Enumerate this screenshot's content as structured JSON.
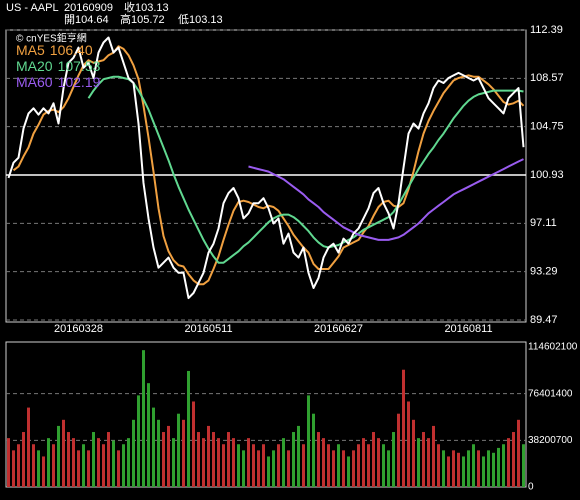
{
  "header": {
    "symbol": "US - AAPL",
    "date": "20160909",
    "close": "收103.13",
    "open": "開104.64",
    "high": "高105.72",
    "low": "低103.13",
    "watermark": "© cnYES鉅亨網"
  },
  "chart_data": [
    {
      "type": "line",
      "categories": [
        null,
        null,
        null,
        null,
        null,
        null,
        null,
        null,
        null,
        null,
        null,
        null,
        null,
        null,
        "20160328",
        null,
        null,
        null,
        null,
        null,
        null,
        null,
        null,
        null,
        null,
        null,
        null,
        null,
        null,
        null,
        null,
        null,
        null,
        null,
        null,
        null,
        null,
        null,
        null,
        null,
        "20160511",
        null,
        null,
        null,
        null,
        null,
        null,
        null,
        null,
        null,
        null,
        null,
        null,
        null,
        null,
        null,
        null,
        null,
        null,
        null,
        null,
        null,
        null,
        null,
        null,
        null,
        "20160627",
        null,
        null,
        null,
        null,
        null,
        null,
        null,
        null,
        null,
        null,
        null,
        null,
        null,
        null,
        null,
        null,
        null,
        null,
        null,
        null,
        null,
        null,
        null,
        null,
        null,
        "20160811",
        null,
        null,
        null,
        null,
        null,
        null,
        null,
        null,
        null,
        null,
        null
      ],
      "ylim": [
        89.47,
        112.39
      ],
      "yticks": [
        89.47,
        93.29,
        97.11,
        100.93,
        104.75,
        108.57,
        112.39
      ],
      "grid": true,
      "reference_line": 100.93,
      "series": [
        {
          "color": "#ffffff",
          "values": [
            100.7,
            101.9,
            102.3,
            104.6,
            105.8,
            106.2,
            105.7,
            106.2,
            105.8,
            106.6,
            105.0,
            107.8,
            109.8,
            110.2,
            111.0,
            109.4,
            109.8,
            108.6,
            110.6,
            111.4,
            111.8,
            110.6,
            111.0,
            109.8,
            108.6,
            108.2,
            105.0,
            100.3,
            97.5,
            95.2,
            93.6,
            94.0,
            94.4,
            93.6,
            93.2,
            93.2,
            91.2,
            91.6,
            92.4,
            93.2,
            94.8,
            95.5,
            96.7,
            98.7,
            99.5,
            99.9,
            99.1,
            97.5,
            97.9,
            98.7,
            98.7,
            99.1,
            98.3,
            97.1,
            97.5,
            95.5,
            96.3,
            94.8,
            94.4,
            95.2,
            93.2,
            92.0,
            92.8,
            94.4,
            95.2,
            95.5,
            94.8,
            95.9,
            95.5,
            96.3,
            96.7,
            97.5,
            98.3,
            99.5,
            99.9,
            98.7,
            97.9,
            96.7,
            98.7,
            101.5,
            104.2,
            105.0,
            104.6,
            105.8,
            106.6,
            107.8,
            108.4,
            108.2,
            108.6,
            108.8,
            109.0,
            108.8,
            108.6,
            108.4,
            108.6,
            107.8,
            107.0,
            106.6,
            106.2,
            105.8,
            107.0,
            107.4,
            107.8,
            103.13
          ]
        },
        {
          "name": "MA5",
          "last_label": "106.40",
          "color": "#f0a040",
          "values": [
            null,
            101.3,
            101.6,
            102.4,
            103.1,
            104.2,
            104.9,
            105.7,
            106.0,
            106.1,
            105.9,
            106.3,
            107.0,
            107.9,
            108.8,
            109.6,
            110.0,
            109.8,
            109.9,
            110.0,
            110.4,
            110.6,
            111.1,
            110.9,
            110.4,
            109.6,
            108.5,
            106.4,
            103.9,
            101.2,
            98.3,
            96.1,
            94.9,
            94.2,
            93.8,
            93.7,
            93.1,
            92.6,
            92.3,
            92.3,
            92.6,
            93.5,
            94.5,
            95.8,
            97.0,
            98.1,
            98.8,
            98.9,
            98.8,
            98.6,
            98.4,
            98.3,
            98.5,
            98.4,
            98.1,
            97.5,
            96.9,
            96.2,
            95.7,
            95.2,
            94.8,
            93.9,
            93.5,
            93.5,
            93.5,
            94.0,
            94.5,
            95.2,
            95.4,
            95.6,
            95.8,
            96.4,
            96.9,
            97.7,
            98.4,
            98.8,
            98.9,
            98.5,
            98.4,
            98.7,
            99.8,
            101.2,
            102.8,
            104.2,
            105.2,
            106.0,
            106.7,
            107.4,
            107.9,
            108.4,
            108.6,
            108.7,
            108.8,
            108.7,
            108.7,
            108.4,
            108.1,
            107.7,
            107.2,
            106.7,
            106.5,
            106.6,
            106.8,
            106.4
          ]
        },
        {
          "name": "MA20",
          "last_label": "107.53",
          "color": "#60d890",
          "values": [
            null,
            null,
            null,
            null,
            null,
            null,
            null,
            null,
            null,
            null,
            null,
            null,
            null,
            null,
            null,
            null,
            107.0,
            107.6,
            108.1,
            108.5,
            108.6,
            108.7,
            108.7,
            108.6,
            108.5,
            108.2,
            107.6,
            106.9,
            106.1,
            105.1,
            104.1,
            103.1,
            102.1,
            101.0,
            100.0,
            99.1,
            98.2,
            97.4,
            96.6,
            95.8,
            95.1,
            94.5,
            94.0,
            94.0,
            94.3,
            94.6,
            94.9,
            95.3,
            95.6,
            96.0,
            96.4,
            96.8,
            97.2,
            97.5,
            97.7,
            97.8,
            97.8,
            97.6,
            97.3,
            96.9,
            96.5,
            96.0,
            95.6,
            95.3,
            95.2,
            95.3,
            95.4,
            95.6,
            95.8,
            96.0,
            96.3,
            96.6,
            96.8,
            97.0,
            97.2,
            97.4,
            97.6,
            98.0,
            98.6,
            99.3,
            100.0,
            100.7,
            101.4,
            102.0,
            102.6,
            103.1,
            103.7,
            104.2,
            104.8,
            105.4,
            105.9,
            106.4,
            106.8,
            107.1,
            107.3,
            107.4,
            107.5,
            107.6,
            107.6,
            107.6,
            107.6,
            107.6,
            107.6,
            107.53
          ]
        },
        {
          "name": "MA60",
          "last_label": "102.19",
          "color": "#9a5cf0",
          "values": [
            null,
            null,
            null,
            null,
            null,
            null,
            null,
            null,
            null,
            null,
            null,
            null,
            null,
            null,
            null,
            null,
            null,
            null,
            null,
            null,
            null,
            null,
            null,
            null,
            null,
            null,
            null,
            null,
            null,
            null,
            null,
            null,
            null,
            null,
            null,
            null,
            null,
            null,
            null,
            null,
            null,
            null,
            null,
            null,
            null,
            null,
            null,
            null,
            101.6,
            101.5,
            101.4,
            101.3,
            101.2,
            101.0,
            100.8,
            100.6,
            100.3,
            100.0,
            99.7,
            99.4,
            99.0,
            98.7,
            98.4,
            98.0,
            97.7,
            97.4,
            97.1,
            96.8,
            96.6,
            96.4,
            96.2,
            96.1,
            96.0,
            95.9,
            95.8,
            95.8,
            95.8,
            95.9,
            96.0,
            96.2,
            96.5,
            96.8,
            97.1,
            97.5,
            97.9,
            98.2,
            98.5,
            98.8,
            99.1,
            99.4,
            99.6,
            99.8,
            100.0,
            100.2,
            100.4,
            100.6,
            100.8,
            101.0,
            101.2,
            101.4,
            101.6,
            101.8,
            102.0,
            102.19
          ]
        }
      ]
    },
    {
      "type": "bar",
      "ylim": [
        0,
        114602100
      ],
      "yticks": [
        0,
        38200700,
        76401400,
        114602100
      ],
      "grid": true,
      "up_color": "#c03030",
      "down_color": "#30a030",
      "values": [
        40000000,
        30000000,
        35000000,
        45000000,
        65000000,
        35000000,
        30000000,
        25000000,
        40000000,
        35000000,
        50000000,
        55000000,
        45000000,
        40000000,
        30000000,
        35000000,
        30000000,
        45000000,
        40000000,
        35000000,
        45000000,
        38000000,
        30000000,
        35000000,
        40000000,
        55000000,
        75000000,
        112000000,
        85000000,
        65000000,
        55000000,
        45000000,
        50000000,
        40000000,
        60000000,
        55000000,
        95000000,
        70000000,
        45000000,
        40000000,
        50000000,
        45000000,
        40000000,
        35000000,
        45000000,
        40000000,
        35000000,
        30000000,
        40000000,
        35000000,
        30000000,
        35000000,
        25000000,
        30000000,
        35000000,
        40000000,
        30000000,
        45000000,
        50000000,
        35000000,
        75000000,
        60000000,
        45000000,
        40000000,
        35000000,
        30000000,
        35000000,
        30000000,
        25000000,
        30000000,
        35000000,
        40000000,
        35000000,
        45000000,
        40000000,
        35000000,
        30000000,
        45000000,
        60000000,
        96000000,
        70000000,
        55000000,
        40000000,
        45000000,
        40000000,
        50000000,
        35000000,
        30000000,
        25000000,
        30000000,
        28000000,
        25000000,
        30000000,
        35000000,
        30000000,
        25000000,
        30000000,
        28000000,
        32000000,
        35000000,
        40000000,
        45000000,
        55000000,
        35000000
      ]
    }
  ]
}
